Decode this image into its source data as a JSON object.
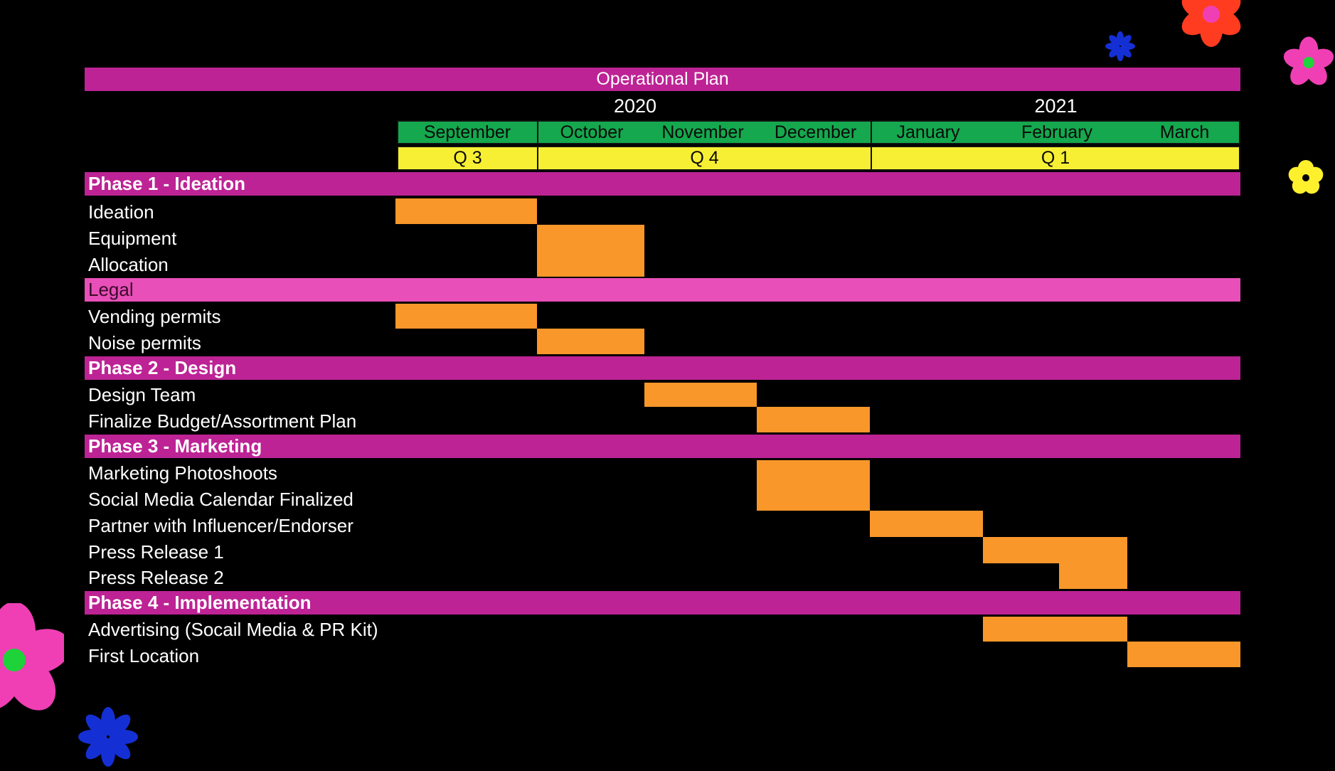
{
  "title": "Operational Plan",
  "years": [
    "2020",
    "2021"
  ],
  "months": [
    "September",
    "October",
    "November",
    "December",
    "January",
    "February",
    "March"
  ],
  "quarters": [
    "Q 3",
    "Q 4",
    "Q 1"
  ],
  "colors": {
    "background": "#000000",
    "phase_bar": "#bd2395",
    "section_bar": "#e84fb8",
    "month_bar": "#15a84e",
    "quarter_bar": "#f7ef33",
    "task_bar": "#f9972a",
    "flower_red": "#ff3c1f",
    "flower_pink": "#f03fb4",
    "flower_blue": "#1430d4",
    "flower_yellow": "#fff02e",
    "flower_green": "#1ed23a"
  },
  "rows": [
    {
      "kind": "phase",
      "label": "Phase 1 - Ideation"
    },
    {
      "kind": "task",
      "label": "Ideation"
    },
    {
      "kind": "task",
      "label": "Equipment"
    },
    {
      "kind": "task",
      "label": "Allocation"
    },
    {
      "kind": "section",
      "label": "Legal"
    },
    {
      "kind": "task",
      "label": "Vending permits"
    },
    {
      "kind": "task",
      "label": "Noise permits"
    },
    {
      "kind": "phase",
      "label": "Phase 2 - Design"
    },
    {
      "kind": "task",
      "label": "Design Team"
    },
    {
      "kind": "task",
      "label": "Finalize Budget/Assortment Plan"
    },
    {
      "kind": "phase",
      "label": "Phase 3 - Marketing"
    },
    {
      "kind": "task",
      "label": "Marketing Photoshoots"
    },
    {
      "kind": "task",
      "label": "Social Media Calendar Finalized"
    },
    {
      "kind": "task",
      "label": "Partner with Influencer/Endorser"
    },
    {
      "kind": "task",
      "label": "Press Release 1"
    },
    {
      "kind": "task",
      "label": "Press Release 2"
    },
    {
      "kind": "phase",
      "label": "Phase 4 - Implementation"
    },
    {
      "kind": "task",
      "label": "Advertising (Socail Media & PR Kit)"
    },
    {
      "kind": "task",
      "label": "First Location"
    }
  ],
  "schedule": [
    {
      "task": "Ideation",
      "start": "September",
      "end": "September"
    },
    {
      "task": "Equipment",
      "start": "October",
      "end": "October"
    },
    {
      "task": "Allocation",
      "start": "October",
      "end": "October"
    },
    {
      "task": "Vending permits",
      "start": "September",
      "end": "September"
    },
    {
      "task": "Noise permits",
      "start": "October",
      "end": "October"
    },
    {
      "task": "Design Team",
      "start": "November",
      "end": "November"
    },
    {
      "task": "Finalize Budget/Assortment Plan",
      "start": "December",
      "end": "December"
    },
    {
      "task": "Marketing Photoshoots",
      "start": "December",
      "end": "December"
    },
    {
      "task": "Social Media Calendar Finalized",
      "start": "December",
      "end": "December"
    },
    {
      "task": "Partner with Influencer/Endorser",
      "start": "January",
      "end": "January"
    },
    {
      "task": "Press Release 1",
      "start": "February",
      "end": "February"
    },
    {
      "task": "Press Release 2",
      "start": "February",
      "end": "February"
    },
    {
      "task": "Advertising (Socail Media & PR Kit)",
      "start": "February",
      "end": "February"
    },
    {
      "task": "First Location",
      "start": "March",
      "end": "March"
    }
  ]
}
